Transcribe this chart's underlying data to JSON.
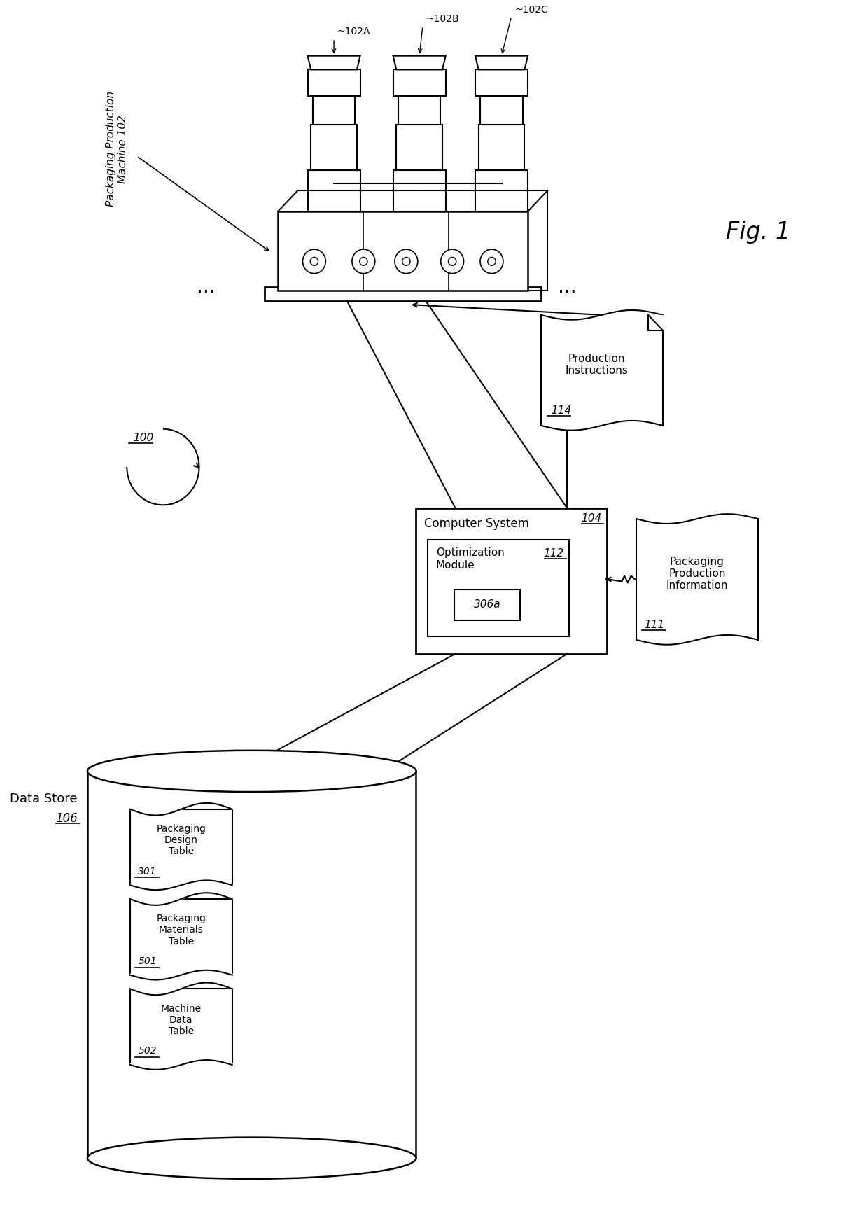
{
  "bg_color": "#ffffff",
  "line_color": "#000000",
  "fig_label": "Fig. 1",
  "machine_label_line1": "Packaging Production",
  "machine_label_line2": "Machine 102",
  "machine_102A": "~102A",
  "machine_102B": "~102B",
  "machine_102C": "~102C",
  "computer_label": "Computer System",
  "computer_num": "104",
  "optim_label": "Optimization\nModule",
  "optim_num": "112",
  "module_306a": "306a",
  "prod_instr_label": "Production\nInstructions",
  "prod_instr_num": "114",
  "pkg_prod_info_label": "Packaging\nProduction\nInformation",
  "pkg_prod_info_num": "111",
  "data_store_label": "Data Store",
  "data_store_num": "106",
  "table1_label": "Packaging\nDesign\nTable",
  "table1_num": "301",
  "table2_label": "Packaging\nMaterials\nTable",
  "table2_num": "501",
  "table3_label": "Machine\nData\nTable",
  "table3_num": "502",
  "system_label": "100"
}
